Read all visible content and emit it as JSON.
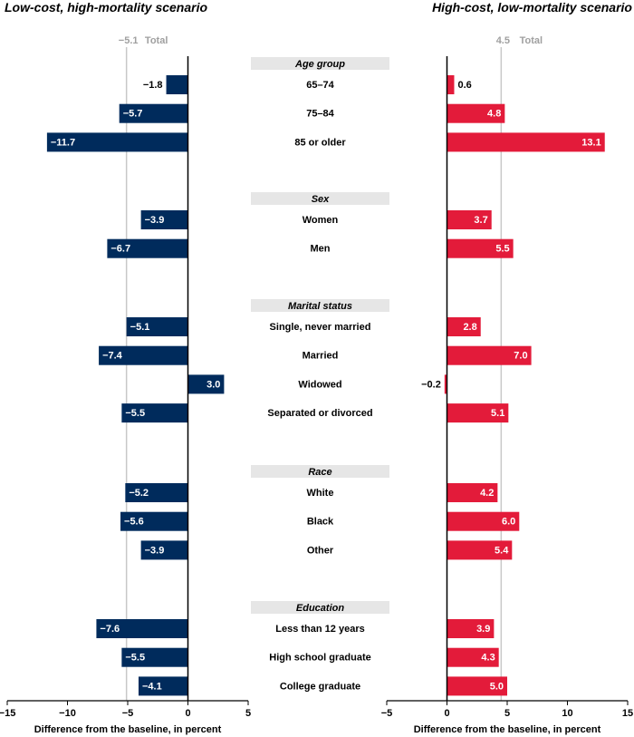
{
  "chart_data": [
    {
      "type": "bar",
      "orientation": "horizontal",
      "title": "Low-cost, high-mortality scenario",
      "xlabel": "Difference from the baseline, in percent",
      "xlim": [
        -15,
        5
      ],
      "xticks": [
        -15,
        -10,
        -5,
        0,
        5
      ],
      "xtick_labels": [
        "−15",
        "−10",
        "−5",
        "0",
        "5"
      ],
      "reference": {
        "value": -5.1,
        "label": "−5.1",
        "name": "Total"
      },
      "color": "#002b5c",
      "values": [
        -1.8,
        -5.7,
        -11.7,
        -3.9,
        -6.7,
        -5.1,
        -7.4,
        3.0,
        -5.5,
        -5.2,
        -5.6,
        -3.9,
        -7.6,
        -5.5,
        -4.1
      ]
    },
    {
      "type": "bar",
      "orientation": "horizontal",
      "title": "High-cost, low-mortality scenario",
      "xlabel": "Difference from the baseline, in percent",
      "xlim": [
        -5,
        15
      ],
      "xticks": [
        -5,
        0,
        5,
        10,
        15
      ],
      "xtick_labels": [
        "−5",
        "0",
        "5",
        "10",
        "15"
      ],
      "reference": {
        "value": 4.5,
        "label": "4.5",
        "name": "Total"
      },
      "color": "#e31b3a",
      "values": [
        0.6,
        4.8,
        13.1,
        3.7,
        5.5,
        2.8,
        7.0,
        -0.2,
        5.1,
        4.2,
        6.0,
        5.4,
        3.9,
        4.3,
        5.0
      ]
    }
  ],
  "groups": [
    {
      "name": "Age group",
      "categories": [
        "65–74",
        "75–84",
        "85 or older"
      ]
    },
    {
      "name": "Sex",
      "categories": [
        "Women",
        "Men"
      ]
    },
    {
      "name": "Marital status",
      "categories": [
        "Single, never married",
        "Married",
        "Widowed",
        "Separated or divorced"
      ]
    },
    {
      "name": "Race",
      "categories": [
        "White",
        "Black",
        "Other"
      ]
    },
    {
      "name": "Education",
      "categories": [
        "Less than 12 years",
        "High school graduate",
        "College graduate"
      ]
    }
  ]
}
